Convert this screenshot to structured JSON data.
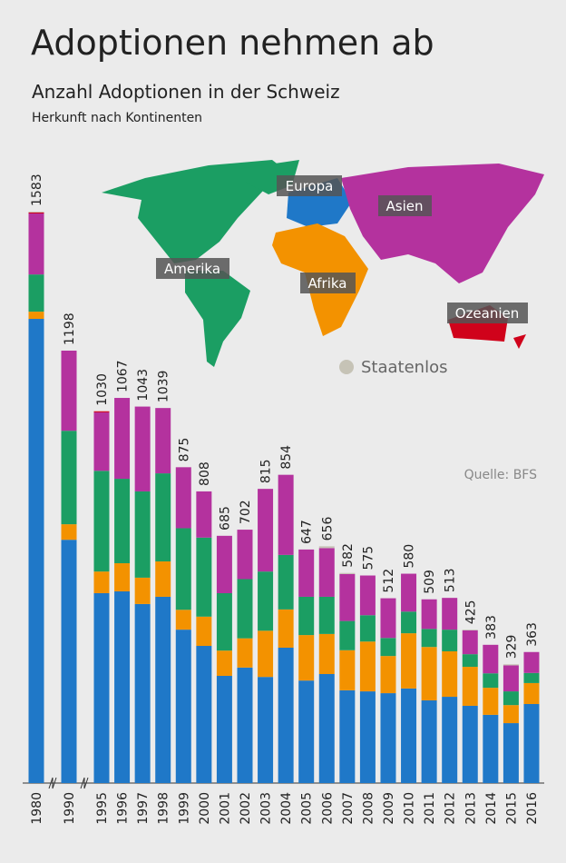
{
  "chart_data": {
    "type": "bar",
    "stacked": true,
    "title": "Adoptionen nehmen ab",
    "subtitle": "Anzahl Adoptionen in der Schweiz",
    "note": "Herkunft nach Kontinenten",
    "source": "Quelle: BFS",
    "categories": [
      "1980",
      "1990",
      "1995",
      "1996",
      "1997",
      "1998",
      "1999",
      "2000",
      "2001",
      "2002",
      "2003",
      "2004",
      "2005",
      "2006",
      "2007",
      "2008",
      "2009",
      "2010",
      "2011",
      "2012",
      "2013",
      "2014",
      "2015",
      "2016"
    ],
    "totals": [
      1583,
      1198,
      1030,
      1067,
      1043,
      1039,
      875,
      808,
      685,
      702,
      815,
      854,
      647,
      656,
      582,
      575,
      512,
      580,
      509,
      513,
      425,
      383,
      329,
      363
    ],
    "series": [
      {
        "name": "Europa",
        "color": "#1f78c8",
        "values": [
          1286,
          674,
          526,
          531,
          496,
          516,
          425,
          380,
          297,
          320,
          294,
          375,
          284,
          302,
          257,
          254,
          249,
          262,
          229,
          239,
          214,
          189,
          166,
          219
        ]
      },
      {
        "name": "Afrika",
        "color": "#f39200",
        "values": [
          20,
          43,
          60,
          78,
          73,
          98,
          55,
          81,
          70,
          81,
          128,
          106,
          126,
          111,
          111,
          138,
          103,
          153,
          148,
          126,
          108,
          75,
          50,
          58
        ]
      },
      {
        "name": "Amerika",
        "color": "#1b9e63",
        "values": [
          103,
          259,
          279,
          234,
          239,
          244,
          226,
          219,
          159,
          164,
          164,
          151,
          106,
          103,
          81,
          73,
          50,
          60,
          50,
          60,
          35,
          40,
          38,
          28
        ]
      },
      {
        "name": "Asien",
        "color": "#b4329e",
        "values": [
          169,
          222,
          162,
          224,
          235,
          181,
          169,
          128,
          159,
          137,
          229,
          222,
          131,
          135,
          130,
          110,
          110,
          105,
          82,
          88,
          66,
          79,
          72,
          58
        ]
      },
      {
        "name": "Ozeanien",
        "color": "#d0021b",
        "values": [
          3,
          0,
          3,
          0,
          0,
          0,
          0,
          0,
          0,
          0,
          0,
          0,
          0,
          0,
          0,
          0,
          0,
          0,
          0,
          0,
          0,
          0,
          0,
          0
        ]
      },
      {
        "name": "Staatenlos",
        "color": "#c6c3b6",
        "values": [
          2,
          0,
          0,
          0,
          0,
          0,
          0,
          0,
          0,
          0,
          0,
          0,
          0,
          5,
          3,
          0,
          0,
          0,
          0,
          0,
          2,
          0,
          3,
          0
        ]
      }
    ]
  }
}
